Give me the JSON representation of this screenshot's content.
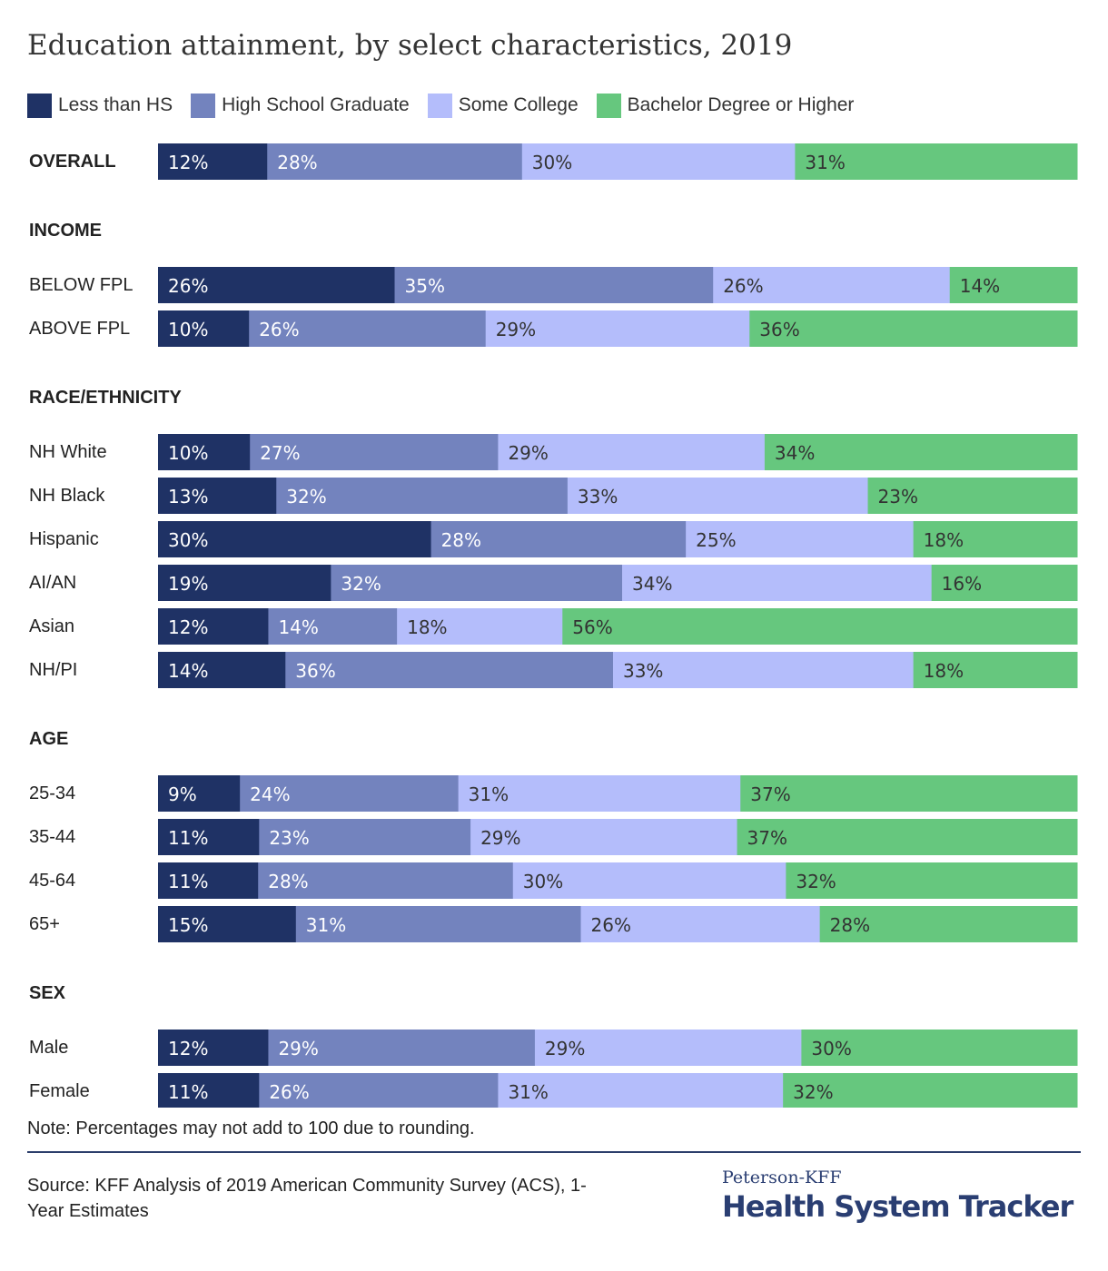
{
  "title": "Education attainment, by select characteristics, 2019",
  "note": "Note: Percentages may not add to 100 due to rounding.",
  "source": "Source: KFF Analysis of 2019 American Community Survey (ACS), 1-Year Estimates",
  "brand": {
    "top": "Peterson-KFF",
    "main": "Health System Tracker"
  },
  "chart_data": {
    "type": "bar",
    "orientation": "horizontal",
    "stacked": true,
    "title": "Education attainment, by select characteristics, 2019",
    "legend_position": "top-left",
    "grid": false,
    "series": [
      {
        "name": "Less than HS",
        "color": "#1f3265",
        "label_color": "#ffffff"
      },
      {
        "name": "High School Graduate",
        "color": "#7383be",
        "label_color": "#ffffff"
      },
      {
        "name": "Some College",
        "color": "#b4bdfb",
        "label_color": "#333333"
      },
      {
        "name": "Bachelor Degree or Higher",
        "color": "#66c77e",
        "label_color": "#333333"
      }
    ],
    "groups": [
      {
        "label": "",
        "rows": [
          {
            "label": "OVERALL",
            "bold": true,
            "values": [
              12,
              28,
              30,
              31
            ]
          }
        ]
      },
      {
        "label": "INCOME",
        "rows": [
          {
            "label": "BELOW FPL",
            "values": [
              26,
              35,
              26,
              14
            ]
          },
          {
            "label": "ABOVE FPL",
            "values": [
              10,
              26,
              29,
              36
            ]
          }
        ]
      },
      {
        "label": "RACE/ETHNICITY",
        "rows": [
          {
            "label": "NH White",
            "values": [
              10,
              27,
              29,
              34
            ]
          },
          {
            "label": "NH Black",
            "values": [
              13,
              32,
              33,
              23
            ]
          },
          {
            "label": "Hispanic",
            "values": [
              30,
              28,
              25,
              18
            ]
          },
          {
            "label": "AI/AN",
            "values": [
              19,
              32,
              34,
              16
            ]
          },
          {
            "label": "Asian",
            "values": [
              12,
              14,
              18,
              56
            ]
          },
          {
            "label": "NH/PI",
            "values": [
              14,
              36,
              33,
              18
            ]
          }
        ]
      },
      {
        "label": "AGE",
        "rows": [
          {
            "label": "25-34",
            "values": [
              9,
              24,
              31,
              37
            ]
          },
          {
            "label": "35-44",
            "values": [
              11,
              23,
              29,
              37
            ]
          },
          {
            "label": "45-64",
            "values": [
              11,
              28,
              30,
              32
            ]
          },
          {
            "label": "65+",
            "values": [
              15,
              31,
              26,
              28
            ]
          }
        ]
      },
      {
        "label": "SEX",
        "rows": [
          {
            "label": "Male",
            "values": [
              12,
              29,
              29,
              30
            ]
          },
          {
            "label": "Female",
            "values": [
              11,
              26,
              31,
              32
            ]
          }
        ]
      }
    ]
  }
}
